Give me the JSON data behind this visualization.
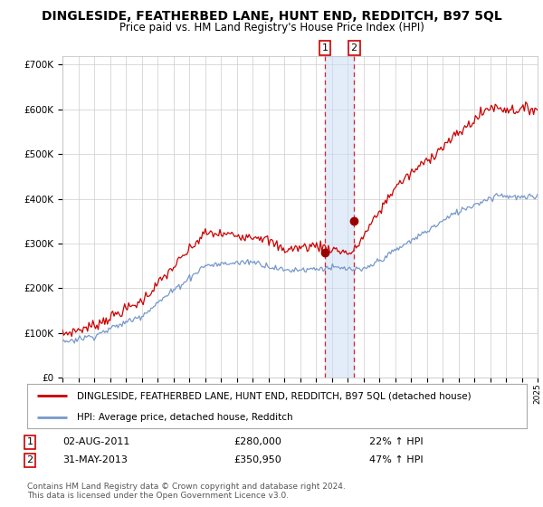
{
  "title": "DINGLESIDE, FEATHERBED LANE, HUNT END, REDDITCH, B97 5QL",
  "subtitle": "Price paid vs. HM Land Registry's House Price Index (HPI)",
  "title_fontsize": 10,
  "subtitle_fontsize": 8.5,
  "background_color": "#ffffff",
  "grid_color": "#cccccc",
  "plot_bg_color": "#ffffff",
  "red_line_color": "#cc0000",
  "blue_line_color": "#7799cc",
  "ylim": [
    0,
    720000
  ],
  "yticks": [
    0,
    100000,
    200000,
    300000,
    400000,
    500000,
    600000,
    700000
  ],
  "ytick_labels": [
    "£0",
    "£100K",
    "£200K",
    "£300K",
    "£400K",
    "£500K",
    "£600K",
    "£700K"
  ],
  "year_start": 1995,
  "year_end": 2025,
  "event1_year": 2011.58,
  "event2_year": 2013.41,
  "event1_price": 280000,
  "event2_price": 350950,
  "event1_label": "1",
  "event2_label": "2",
  "event1_date": "02-AUG-2011",
  "event2_date": "31-MAY-2013",
  "event1_price_str": "£280,000",
  "event2_price_str": "£350,950",
  "event1_pct": "22% ↑ HPI",
  "event2_pct": "47% ↑ HPI",
  "legend_label_red": "DINGLESIDE, FEATHERBED LANE, HUNT END, REDDITCH, B97 5QL (detached house)",
  "legend_label_blue": "HPI: Average price, detached house, Redditch",
  "footer1": "Contains HM Land Registry data © Crown copyright and database right 2024.",
  "footer2": "This data is licensed under the Open Government Licence v3.0."
}
